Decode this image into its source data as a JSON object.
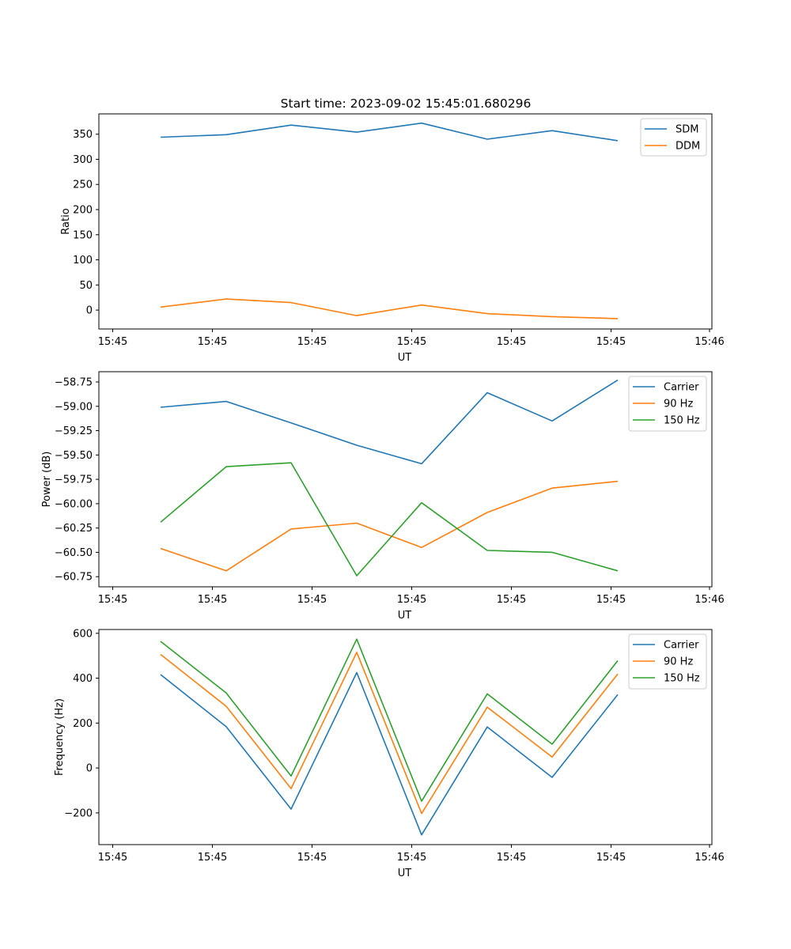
{
  "title": "Start time: 2023-09-02 15:45:01.680296",
  "chart_data": [
    {
      "type": "line",
      "xlabel": "UT",
      "ylabel": "Ratio",
      "x_tick_labels": [
        "15:45",
        "15:45",
        "15:45",
        "15:45",
        "15:45",
        "15:45",
        "15:46"
      ],
      "y_ticks": [
        0,
        50,
        100,
        150,
        200,
        250,
        300,
        350
      ],
      "y_tick_labels": [
        "0",
        "50",
        "100",
        "150",
        "200",
        "250",
        "300",
        "350"
      ],
      "ylim": [
        -37.6,
        390.4
      ],
      "legend_position": "top-right",
      "series": [
        {
          "name": "SDM",
          "color": "#1f77b4",
          "values": [
            344,
            349,
            368,
            354,
            372,
            340,
            357,
            337
          ]
        },
        {
          "name": "DDM",
          "color": "#ff7f0e",
          "values": [
            6,
            22,
            15,
            -11,
            10,
            -7,
            -13,
            -17
          ]
        }
      ]
    },
    {
      "type": "line",
      "xlabel": "UT",
      "ylabel": "Power (dB)",
      "x_tick_labels": [
        "15:45",
        "15:45",
        "15:45",
        "15:45",
        "15:45",
        "15:45",
        "15:46"
      ],
      "y_ticks": [
        -60.75,
        -60.5,
        -60.25,
        -60.0,
        -59.75,
        -59.5,
        -59.25,
        -59.0,
        -58.75
      ],
      "y_tick_labels": [
        "−60.75",
        "−60.50",
        "−60.25",
        "−60.00",
        "−59.75",
        "−59.50",
        "−59.25",
        "−59.00",
        "−58.75"
      ],
      "ylim": [
        -60.8538,
        -58.6443
      ],
      "legend_position": "top-right",
      "series": [
        {
          "name": "Carrier",
          "color": "#1f77b4",
          "values": [
            -59.01,
            -58.95,
            -59.17,
            -59.4,
            -59.59,
            -58.86,
            -59.15,
            -58.73
          ]
        },
        {
          "name": "90 Hz",
          "color": "#ff7f0e",
          "values": [
            -60.46,
            -60.69,
            -60.26,
            -60.2,
            -60.45,
            -60.09,
            -59.84,
            -59.77
          ]
        },
        {
          "name": "150 Hz",
          "color": "#2ca02c",
          "values": [
            -60.19,
            -59.62,
            -59.58,
            -60.74,
            -59.99,
            -60.48,
            -60.5,
            -60.69
          ]
        }
      ]
    },
    {
      "type": "line",
      "xlabel": "UT",
      "ylabel": "Frequency (Hz)",
      "x_tick_labels": [
        "15:45",
        "15:45",
        "15:45",
        "15:45",
        "15:45",
        "15:45",
        "15:46"
      ],
      "y_ticks": [
        -200,
        0,
        200,
        400,
        600
      ],
      "y_tick_labels": [
        "−200",
        "0",
        "200",
        "400",
        "600"
      ],
      "ylim": [
        -341.3,
        616.9
      ],
      "legend_position": "top-right",
      "series": [
        {
          "name": "Carrier",
          "color": "#1f77b4",
          "values": [
            416,
            184,
            -183,
            425,
            -298,
            183,
            -42,
            327
          ]
        },
        {
          "name": "90 Hz",
          "color": "#ff7f0e",
          "values": [
            506,
            275,
            -92,
            515,
            -203,
            271,
            49,
            419
          ]
        },
        {
          "name": "150 Hz",
          "color": "#2ca02c",
          "values": [
            564,
            334,
            -36,
            574,
            -148,
            330,
            106,
            478
          ]
        }
      ]
    }
  ]
}
